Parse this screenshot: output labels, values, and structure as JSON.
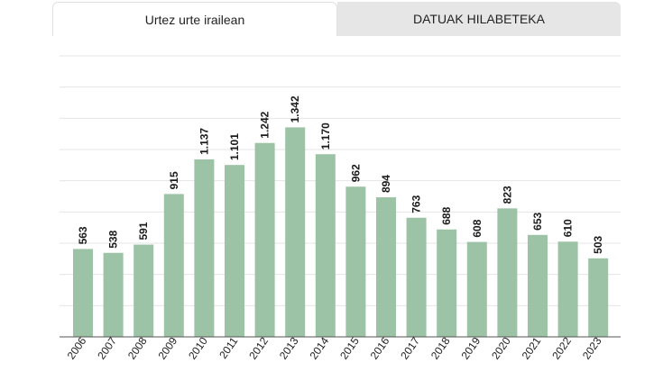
{
  "tabs": [
    {
      "label": "Urtez urte irailean",
      "active": true
    },
    {
      "label": "DATUAK HILABETEKA",
      "active": false
    }
  ],
  "colors": {
    "bar": "#9cc3a6",
    "grid": "#e4e4e4",
    "axis": "#555555"
  },
  "chart_data": {
    "type": "bar",
    "categories": [
      "2006",
      "2007",
      "2008",
      "2009",
      "2010",
      "2011",
      "2012",
      "2013",
      "2014",
      "2015",
      "2016",
      "2017",
      "2018",
      "2019",
      "2020",
      "2021",
      "2022",
      "2023"
    ],
    "values": [
      563,
      538,
      591,
      915,
      1137,
      1101,
      1242,
      1342,
      1170,
      962,
      894,
      763,
      688,
      608,
      823,
      653,
      610,
      503
    ],
    "value_labels": [
      "563",
      "538",
      "591",
      "915",
      "1.137",
      "1.101",
      "1.242",
      "1.342",
      "1.170",
      "962",
      "894",
      "763",
      "688",
      "608",
      "823",
      "653",
      "610",
      "503"
    ],
    "ylim": [
      0,
      1800
    ],
    "grid": true,
    "legend": "none"
  }
}
